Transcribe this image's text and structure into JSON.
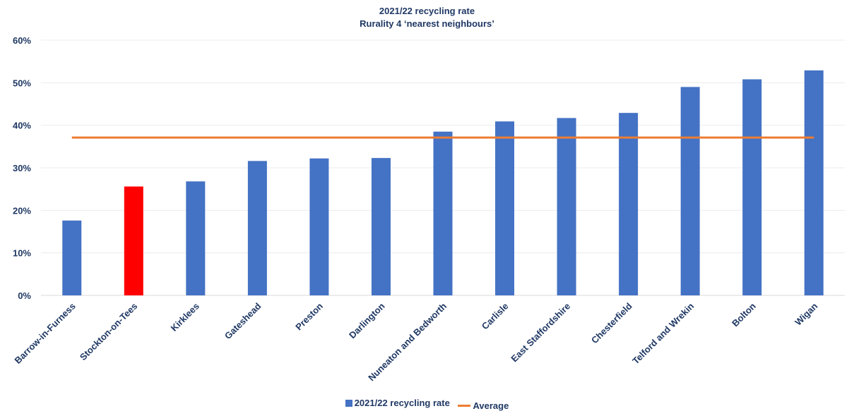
{
  "chart_data": {
    "type": "bar",
    "title_lines": [
      "2021/22 recycling rate",
      "Rurality 4 ‘nearest neighbours’"
    ],
    "categories": [
      "Barrow-in-Furness",
      "Stockton-on-Tees",
      "Kirklees",
      "Gateshead",
      "Preston",
      "Darlington",
      "Nuneaton and Bedworth",
      "Carlisle",
      "East Staffordshire",
      "Chesterfield",
      "Telford and Wrekin",
      "Bolton",
      "Wigan"
    ],
    "series": [
      {
        "name": "2021/22 recycling rate",
        "type": "bar",
        "color": "#4472c4",
        "highlight": {
          "category": "Stockton-on-Tees",
          "color": "#ff0000"
        },
        "values": [
          17.6,
          25.6,
          26.8,
          31.6,
          32.2,
          32.3,
          38.5,
          40.9,
          41.7,
          42.9,
          49.0,
          50.8,
          52.9
        ]
      },
      {
        "name": "Average",
        "type": "line",
        "color": "#ed7d31",
        "value": 37.1
      }
    ],
    "ylim": [
      0,
      60
    ],
    "yticks": [
      "0%",
      "10%",
      "20%",
      "30%",
      "40%",
      "50%",
      "60%"
    ],
    "grid": true,
    "legend_position": "bottom",
    "xlabel": "",
    "ylabel": ""
  }
}
